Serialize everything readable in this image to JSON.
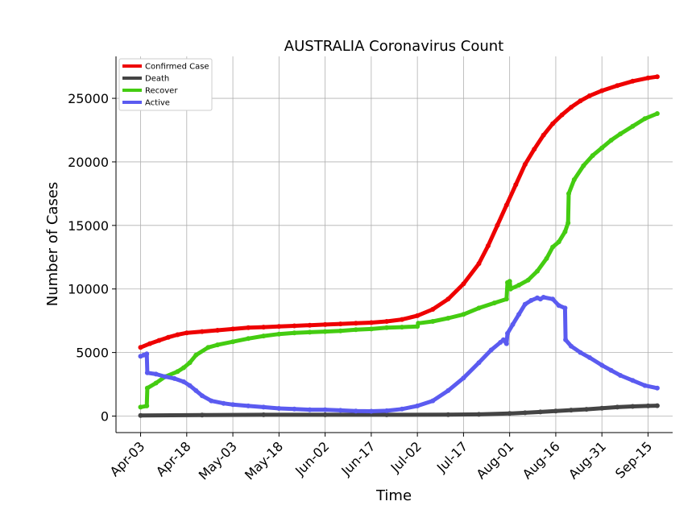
{
  "chart_data": {
    "type": "line",
    "title": "AUSTRALIA Coronavirus Count",
    "xlabel": "Time",
    "ylabel": "Number of Cases",
    "x_ticks": [
      "Apr-03",
      "Apr-18",
      "May-03",
      "May-18",
      "Jun-02",
      "Jun-17",
      "Jul-02",
      "Jul-17",
      "Aug-01",
      "Aug-16",
      "Aug-31",
      "Sep-15"
    ],
    "x_tick_days": [
      0,
      15,
      30,
      45,
      60,
      75,
      90,
      105,
      120,
      135,
      150,
      165
    ],
    "y_ticks": [
      0,
      5000,
      10000,
      15000,
      20000,
      25000
    ],
    "xlim": [
      -8,
      173
    ],
    "ylim": [
      -1300,
      28300
    ],
    "grid": true,
    "legend_position": "top-left",
    "series": [
      {
        "name": "Confirmed Case",
        "color": "#ee0000",
        "points": [
          [
            0,
            5400
          ],
          [
            3,
            5700
          ],
          [
            6,
            5950
          ],
          [
            9,
            6200
          ],
          [
            12,
            6400
          ],
          [
            15,
            6550
          ],
          [
            20,
            6650
          ],
          [
            25,
            6750
          ],
          [
            30,
            6850
          ],
          [
            35,
            6950
          ],
          [
            40,
            7000
          ],
          [
            45,
            7050
          ],
          [
            50,
            7100
          ],
          [
            55,
            7150
          ],
          [
            60,
            7200
          ],
          [
            65,
            7250
          ],
          [
            70,
            7300
          ],
          [
            75,
            7350
          ],
          [
            80,
            7450
          ],
          [
            85,
            7600
          ],
          [
            90,
            7900
          ],
          [
            95,
            8400
          ],
          [
            100,
            9200
          ],
          [
            105,
            10400
          ],
          [
            110,
            12000
          ],
          [
            113,
            13400
          ],
          [
            116,
            15000
          ],
          [
            119,
            16600
          ],
          [
            122,
            18200
          ],
          [
            125,
            19800
          ],
          [
            128,
            21000
          ],
          [
            131,
            22100
          ],
          [
            134,
            23000
          ],
          [
            137,
            23700
          ],
          [
            140,
            24300
          ],
          [
            143,
            24800
          ],
          [
            146,
            25200
          ],
          [
            150,
            25600
          ],
          [
            155,
            26000
          ],
          [
            160,
            26350
          ],
          [
            165,
            26600
          ],
          [
            168,
            26700
          ]
        ]
      },
      {
        "name": "Death",
        "color": "#444444",
        "points": [
          [
            0,
            50
          ],
          [
            20,
            80
          ],
          [
            40,
            100
          ],
          [
            60,
            100
          ],
          [
            80,
            100
          ],
          [
            100,
            110
          ],
          [
            110,
            130
          ],
          [
            120,
            200
          ],
          [
            125,
            260
          ],
          [
            130,
            320
          ],
          [
            135,
            400
          ],
          [
            140,
            470
          ],
          [
            145,
            530
          ],
          [
            150,
            620
          ],
          [
            155,
            700
          ],
          [
            160,
            760
          ],
          [
            165,
            800
          ],
          [
            168,
            820
          ]
        ]
      },
      {
        "name": "Recover",
        "color": "#44cc11",
        "points": [
          [
            0,
            700
          ],
          [
            2,
            800
          ],
          [
            2.2,
            2200
          ],
          [
            5,
            2600
          ],
          [
            8,
            3100
          ],
          [
            12,
            3500
          ],
          [
            14,
            3800
          ],
          [
            16,
            4200
          ],
          [
            18,
            4800
          ],
          [
            22,
            5400
          ],
          [
            25,
            5600
          ],
          [
            30,
            5850
          ],
          [
            35,
            6100
          ],
          [
            40,
            6300
          ],
          [
            45,
            6450
          ],
          [
            50,
            6550
          ],
          [
            55,
            6600
          ],
          [
            60,
            6650
          ],
          [
            65,
            6700
          ],
          [
            70,
            6800
          ],
          [
            75,
            6850
          ],
          [
            80,
            6950
          ],
          [
            85,
            7000
          ],
          [
            90,
            7050
          ],
          [
            90.3,
            7300
          ],
          [
            95,
            7450
          ],
          [
            100,
            7700
          ],
          [
            105,
            8000
          ],
          [
            110,
            8500
          ],
          [
            115,
            8900
          ],
          [
            119,
            9200
          ],
          [
            119.3,
            10500
          ],
          [
            120,
            10600
          ],
          [
            120.3,
            10000
          ],
          [
            123,
            10300
          ],
          [
            126,
            10700
          ],
          [
            129,
            11400
          ],
          [
            132,
            12400
          ],
          [
            134,
            13300
          ],
          [
            136,
            13700
          ],
          [
            138,
            14500
          ],
          [
            139,
            15200
          ],
          [
            139.2,
            17500
          ],
          [
            141,
            18600
          ],
          [
            144,
            19700
          ],
          [
            147,
            20500
          ],
          [
            150,
            21100
          ],
          [
            153,
            21700
          ],
          [
            156,
            22200
          ],
          [
            160,
            22800
          ],
          [
            164,
            23400
          ],
          [
            168,
            23800
          ]
        ]
      },
      {
        "name": "Active",
        "color": "#5b5bf0",
        "points": [
          [
            0,
            4700
          ],
          [
            1,
            4800
          ],
          [
            2,
            4900
          ],
          [
            2.2,
            3400
          ],
          [
            5,
            3300
          ],
          [
            8,
            3100
          ],
          [
            11,
            2950
          ],
          [
            14,
            2700
          ],
          [
            16,
            2400
          ],
          [
            18,
            2000
          ],
          [
            20,
            1600
          ],
          [
            23,
            1200
          ],
          [
            27,
            1000
          ],
          [
            30,
            900
          ],
          [
            35,
            800
          ],
          [
            40,
            700
          ],
          [
            45,
            600
          ],
          [
            50,
            550
          ],
          [
            55,
            500
          ],
          [
            60,
            500
          ],
          [
            65,
            450
          ],
          [
            70,
            400
          ],
          [
            75,
            380
          ],
          [
            80,
            420
          ],
          [
            85,
            550
          ],
          [
            90,
            800
          ],
          [
            95,
            1200
          ],
          [
            100,
            2000
          ],
          [
            105,
            3000
          ],
          [
            110,
            4200
          ],
          [
            114,
            5200
          ],
          [
            117,
            5800
          ],
          [
            118,
            6000
          ],
          [
            119,
            5700
          ],
          [
            119.3,
            6500
          ],
          [
            121,
            7200
          ],
          [
            123,
            8000
          ],
          [
            125,
            8800
          ],
          [
            127,
            9100
          ],
          [
            129,
            9300
          ],
          [
            130,
            9200
          ],
          [
            131,
            9350
          ],
          [
            134,
            9200
          ],
          [
            136,
            8700
          ],
          [
            138,
            8500
          ],
          [
            138.2,
            6000
          ],
          [
            140,
            5500
          ],
          [
            143,
            5000
          ],
          [
            146,
            4600
          ],
          [
            150,
            4000
          ],
          [
            153,
            3600
          ],
          [
            156,
            3200
          ],
          [
            160,
            2800
          ],
          [
            164,
            2400
          ],
          [
            168,
            2200
          ]
        ]
      }
    ]
  }
}
